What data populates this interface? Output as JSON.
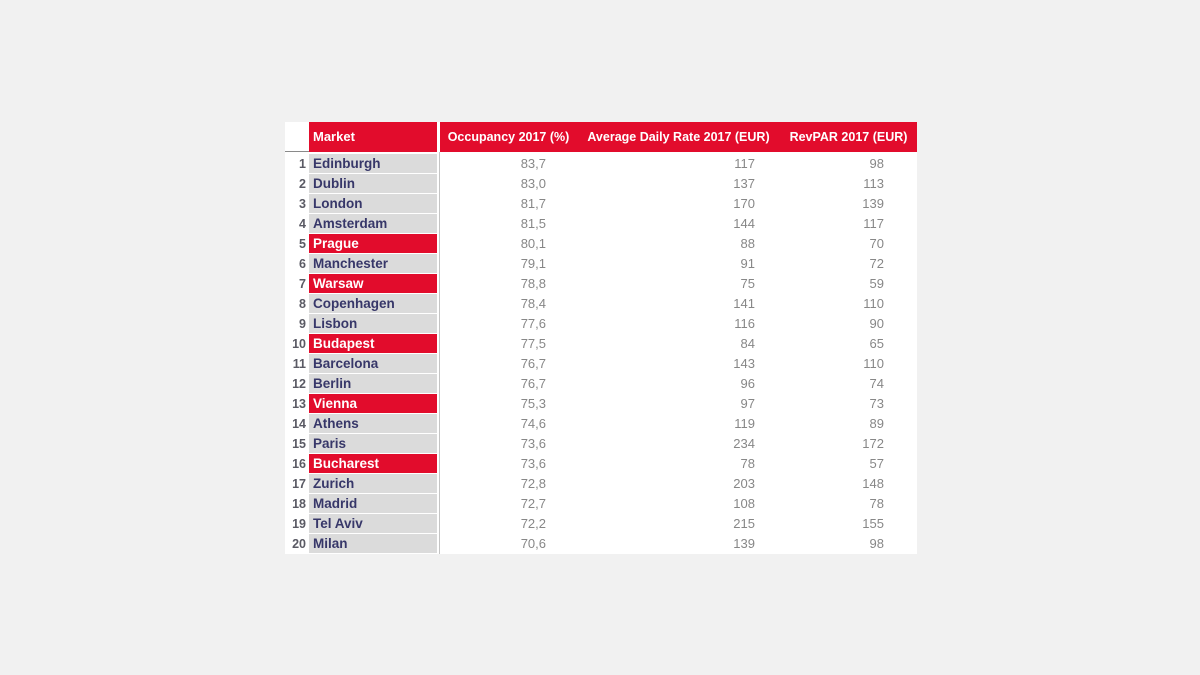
{
  "colors": {
    "accent_red": "#e20c2c",
    "market_text_navy": "#373769",
    "market_cell_gray": "#dbdbdb",
    "value_text_gray": "#878787",
    "index_text_gray": "#5a5a64",
    "gridline_gray": "#c4c4c4",
    "page_background": "#f1f1f1",
    "header_text": "#ffffff"
  },
  "chart_data": {
    "type": "table",
    "columns": [
      "",
      "Market",
      "Occupancy 2017 (%)",
      "Average Daily Rate 2017 (EUR)",
      "RevPAR 2017 (EUR)"
    ],
    "highlighted_markets": [
      "Prague",
      "Warsaw",
      "Budapest",
      "Vienna",
      "Bucharest"
    ],
    "rows": [
      {
        "rank": "1",
        "market": "Edinburgh",
        "occupancy": "83,7",
        "adr": "117",
        "revpar": "98",
        "highlighted": false
      },
      {
        "rank": "2",
        "market": "Dublin",
        "occupancy": "83,0",
        "adr": "137",
        "revpar": "113",
        "highlighted": false
      },
      {
        "rank": "3",
        "market": "London",
        "occupancy": "81,7",
        "adr": "170",
        "revpar": "139",
        "highlighted": false
      },
      {
        "rank": "4",
        "market": "Amsterdam",
        "occupancy": "81,5",
        "adr": "144",
        "revpar": "117",
        "highlighted": false
      },
      {
        "rank": "5",
        "market": "Prague",
        "occupancy": "80,1",
        "adr": "88",
        "revpar": "70",
        "highlighted": true
      },
      {
        "rank": "6",
        "market": "Manchester",
        "occupancy": "79,1",
        "adr": "91",
        "revpar": "72",
        "highlighted": false
      },
      {
        "rank": "7",
        "market": "Warsaw",
        "occupancy": "78,8",
        "adr": "75",
        "revpar": "59",
        "highlighted": true
      },
      {
        "rank": "8",
        "market": "Copenhagen",
        "occupancy": "78,4",
        "adr": "141",
        "revpar": "110",
        "highlighted": false
      },
      {
        "rank": "9",
        "market": "Lisbon",
        "occupancy": "77,6",
        "adr": "116",
        "revpar": "90",
        "highlighted": false
      },
      {
        "rank": "10",
        "market": "Budapest",
        "occupancy": "77,5",
        "adr": "84",
        "revpar": "65",
        "highlighted": true
      },
      {
        "rank": "11",
        "market": "Barcelona",
        "occupancy": "76,7",
        "adr": "143",
        "revpar": "110",
        "highlighted": false
      },
      {
        "rank": "12",
        "market": "Berlin",
        "occupancy": "76,7",
        "adr": "96",
        "revpar": "74",
        "highlighted": false
      },
      {
        "rank": "13",
        "market": "Vienna",
        "occupancy": "75,3",
        "adr": "97",
        "revpar": "73",
        "highlighted": true
      },
      {
        "rank": "14",
        "market": "Athens",
        "occupancy": "74,6",
        "adr": "119",
        "revpar": "89",
        "highlighted": false
      },
      {
        "rank": "15",
        "market": "Paris",
        "occupancy": "73,6",
        "adr": "234",
        "revpar": "172",
        "highlighted": false
      },
      {
        "rank": "16",
        "market": "Bucharest",
        "occupancy": "73,6",
        "adr": "78",
        "revpar": "57",
        "highlighted": true
      },
      {
        "rank": "17",
        "market": "Zurich",
        "occupancy": "72,8",
        "adr": "203",
        "revpar": "148",
        "highlighted": false
      },
      {
        "rank": "18",
        "market": "Madrid",
        "occupancy": "72,7",
        "adr": "108",
        "revpar": "78",
        "highlighted": false
      },
      {
        "rank": "19",
        "market": "Tel Aviv",
        "occupancy": "72,2",
        "adr": "215",
        "revpar": "155",
        "highlighted": false
      },
      {
        "rank": "20",
        "market": "Milan",
        "occupancy": "70,6",
        "adr": "139",
        "revpar": "98",
        "highlighted": false
      }
    ]
  }
}
